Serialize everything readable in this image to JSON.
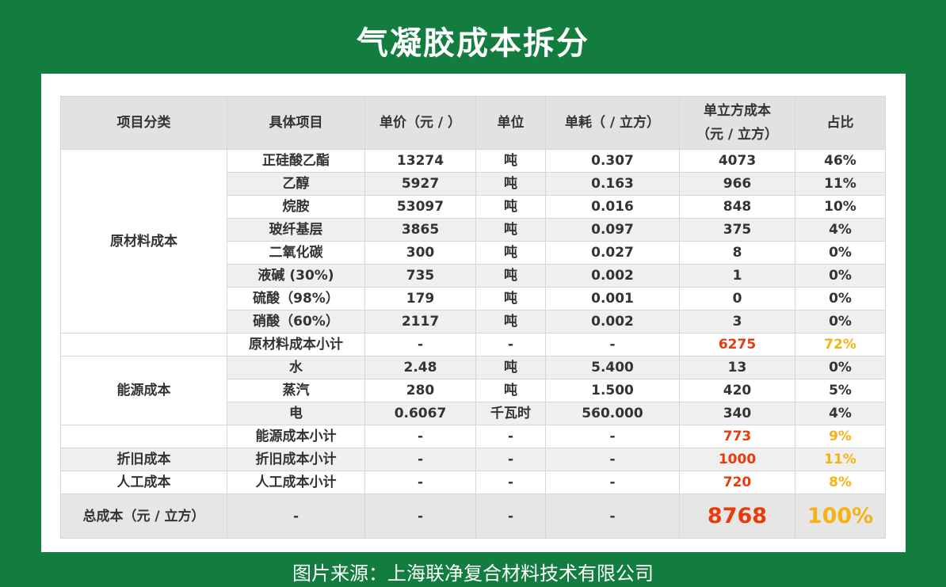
{
  "title": "气凝胶成本拆分",
  "table": {
    "headers": [
      "项目分类",
      "具体项目",
      "单价（元 / ）",
      "单位",
      "单耗（ / 立方）",
      "单立方成本\n（元 / 立方）",
      "占比"
    ],
    "sections": [
      {
        "category": "原材料成本",
        "rows": [
          [
            "正硅酸乙酯",
            "13274",
            "吨",
            "0.307",
            "4073",
            "46%"
          ],
          [
            "乙醇",
            "5927",
            "吨",
            "0.163",
            "966",
            "11%"
          ],
          [
            "烷胺",
            "53097",
            "吨",
            "0.016",
            "848",
            "10%"
          ],
          [
            "玻纤基层",
            "3865",
            "吨",
            "0.097",
            "375",
            "4%"
          ],
          [
            "二氧化碳",
            "300",
            "吨",
            "0.027",
            "8",
            "0%"
          ],
          [
            "液碱 (30%)",
            "735",
            "吨",
            "0.002",
            "1",
            "0%"
          ],
          [
            "硫酸（98%）",
            "179",
            "吨",
            "0.001",
            "0",
            "0%"
          ],
          [
            "硝酸（60%）",
            "2117",
            "吨",
            "0.002",
            "3",
            "0%"
          ]
        ],
        "subtotal": [
          "原材料成本小计",
          "-",
          "-",
          "-",
          "6275",
          "72%"
        ]
      },
      {
        "category": "能源成本",
        "rows": [
          [
            "水",
            "2.48",
            "吨",
            "5.400",
            "13",
            "0%"
          ],
          [
            "蒸汽",
            "280",
            "吨",
            "1.500",
            "420",
            "5%"
          ],
          [
            "电",
            "0.6067",
            "千瓦时",
            "560.000",
            "340",
            "4%"
          ]
        ],
        "subtotal": [
          "能源成本小计",
          "-",
          "-",
          "-",
          "773",
          "9%"
        ]
      },
      {
        "category": "折旧成本",
        "subtotal": [
          "折旧成本小计",
          "-",
          "-",
          "-",
          "1000",
          "11%"
        ]
      },
      {
        "category": "人工成本",
        "subtotal": [
          "人工成本小计",
          "-",
          "-",
          "-",
          "720",
          "8%"
        ]
      }
    ],
    "total": [
      "总成本（元 / 立方）",
      "-",
      "-",
      "-",
      "-",
      "8768",
      "100%"
    ]
  },
  "source": "图片来源：上海联净复合材料技术有限公司"
}
